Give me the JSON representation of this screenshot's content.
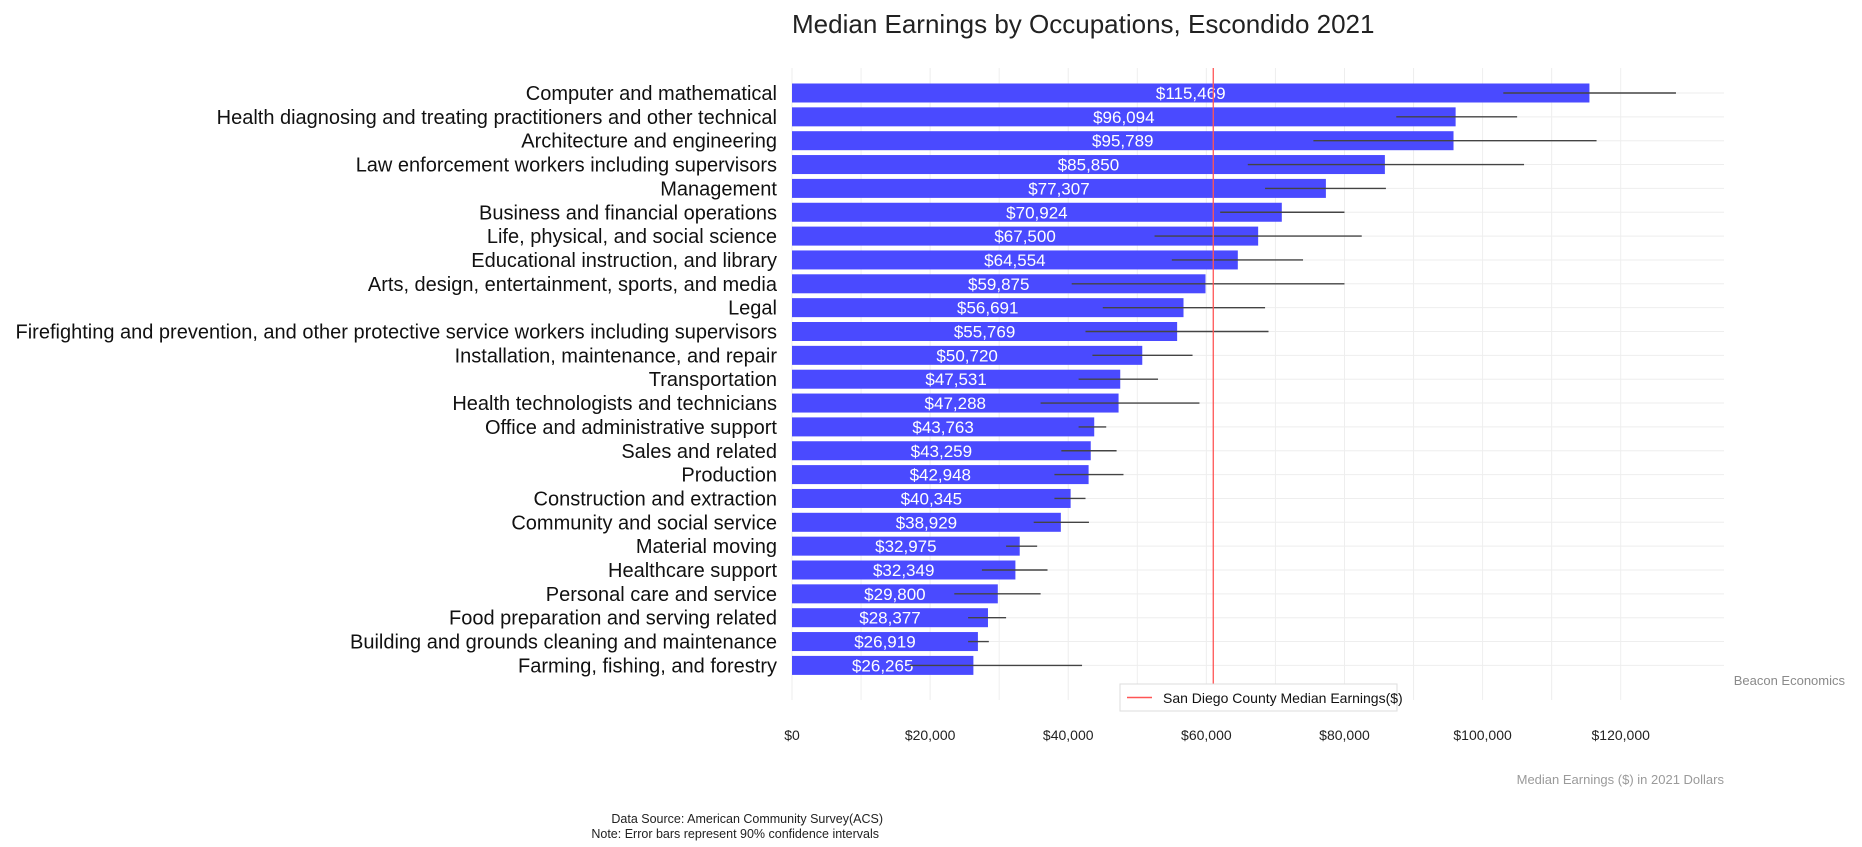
{
  "chart_data": {
    "type": "bar",
    "orientation": "horizontal",
    "title": "Median Earnings by Occupations, Escondido 2021",
    "xlabel": "Median Earnings ($) in 2021 Dollars",
    "ylabel": "",
    "xlim": [
      0,
      135000
    ],
    "x_ticks": [
      0,
      20000,
      40000,
      60000,
      80000,
      100000,
      120000
    ],
    "x_tick_labels": [
      "$0",
      "$20,000",
      "$40,000",
      "$60,000",
      "$80,000",
      "$100,000",
      "$120,000"
    ],
    "grid": true,
    "bar_color": "#4a4aff",
    "reference_line": {
      "label": "San Diego County Median Earnings($)",
      "value": 61000,
      "color": "#ff5555"
    },
    "legend_position": "bottom",
    "credit": "Beacon Economics",
    "caption_lines": [
      "Data Source: American Community Survey(ACS)",
      "Note: Error bars represent 90% confidence intervals"
    ],
    "categories": [
      "Computer and mathematical",
      "Health diagnosing and treating practitioners and other technical",
      "Architecture and engineering",
      "Law enforcement workers including supervisors",
      "Management",
      "Business and financial operations",
      "Life, physical, and social science",
      "Educational instruction, and library",
      "Arts, design, entertainment, sports, and media",
      "Legal",
      "Firefighting and prevention, and other protective service workers including supervisors",
      "Installation, maintenance, and repair",
      "Transportation",
      "Health technologists and technicians",
      "Office and administrative support",
      "Sales and related",
      "Production",
      "Construction and extraction",
      "Community and social service",
      "Material moving",
      "Healthcare support",
      "Personal care and service",
      "Food preparation and serving related",
      "Building and grounds cleaning and maintenance",
      "Farming, fishing, and forestry"
    ],
    "values": [
      115469,
      96094,
      95789,
      85850,
      77307,
      70924,
      67500,
      64554,
      59875,
      56691,
      55769,
      50720,
      47531,
      47288,
      43763,
      43259,
      42948,
      40345,
      38929,
      32975,
      32349,
      29800,
      28377,
      26919,
      26265
    ],
    "value_labels": [
      "$115,469",
      "$96,094",
      "$95,789",
      "$85,850",
      "$77,307",
      "$70,924",
      "$67,500",
      "$64,554",
      "$59,875",
      "$56,691",
      "$55,769",
      "$50,720",
      "$47,531",
      "$47,288",
      "$43,763",
      "$43,259",
      "$42,948",
      "$40,345",
      "$38,929",
      "$32,975",
      "$32,349",
      "$29,800",
      "$28,377",
      "$26,919",
      "$26,265"
    ],
    "error_low": [
      103000,
      87500,
      75500,
      66000,
      68500,
      62000,
      52500,
      55000,
      40500,
      45000,
      42500,
      43500,
      41500,
      36000,
      41500,
      39000,
      38000,
      38000,
      35000,
      31000,
      27500,
      23500,
      25500,
      25500,
      17000
    ],
    "error_high": [
      128000,
      105000,
      116500,
      106000,
      86000,
      80000,
      82500,
      74000,
      80000,
      68500,
      69000,
      58000,
      53000,
      59000,
      45500,
      47000,
      48000,
      42500,
      43000,
      35500,
      37000,
      36000,
      31000,
      28500,
      42000
    ]
  }
}
